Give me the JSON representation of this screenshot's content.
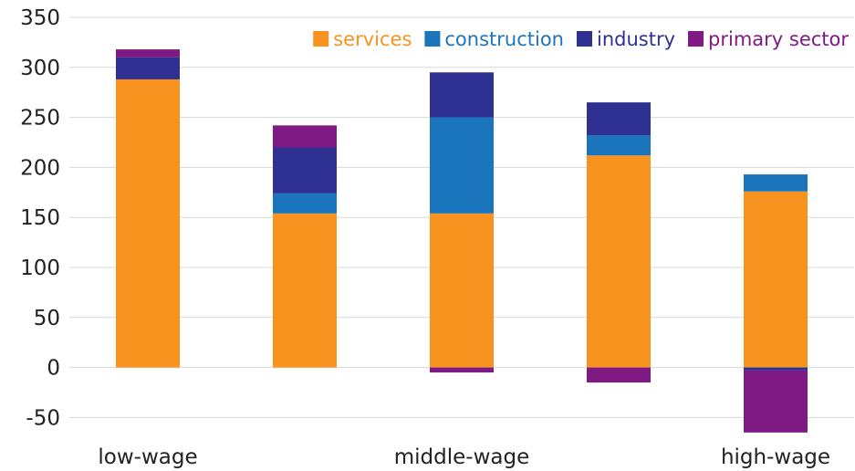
{
  "chart_data": {
    "type": "bar",
    "stacked": true,
    "categories": [
      "low-wage",
      "",
      "middle-wage",
      "",
      "high-wage"
    ],
    "series": [
      {
        "name": "services",
        "color": "#f7931e",
        "values": [
          288,
          154,
          154,
          212,
          176
        ]
      },
      {
        "name": "construction",
        "color": "#1b75bc",
        "values": [
          0,
          20,
          96,
          20,
          17
        ]
      },
      {
        "name": "industry",
        "color": "#2e3192",
        "values": [
          22,
          46,
          45,
          33,
          -3
        ]
      },
      {
        "name": "primary sector",
        "color": "#7f1a84",
        "values": [
          8,
          22,
          -5,
          -15,
          -62
        ]
      }
    ],
    "yticks": [
      "350",
      "300",
      "250",
      "200",
      "150",
      "100",
      "50",
      "0",
      "-50"
    ],
    "ylim": [
      -70,
      350
    ],
    "grid": true,
    "legend_position": "top-right",
    "title": "",
    "xlabel": "",
    "ylabel": ""
  }
}
